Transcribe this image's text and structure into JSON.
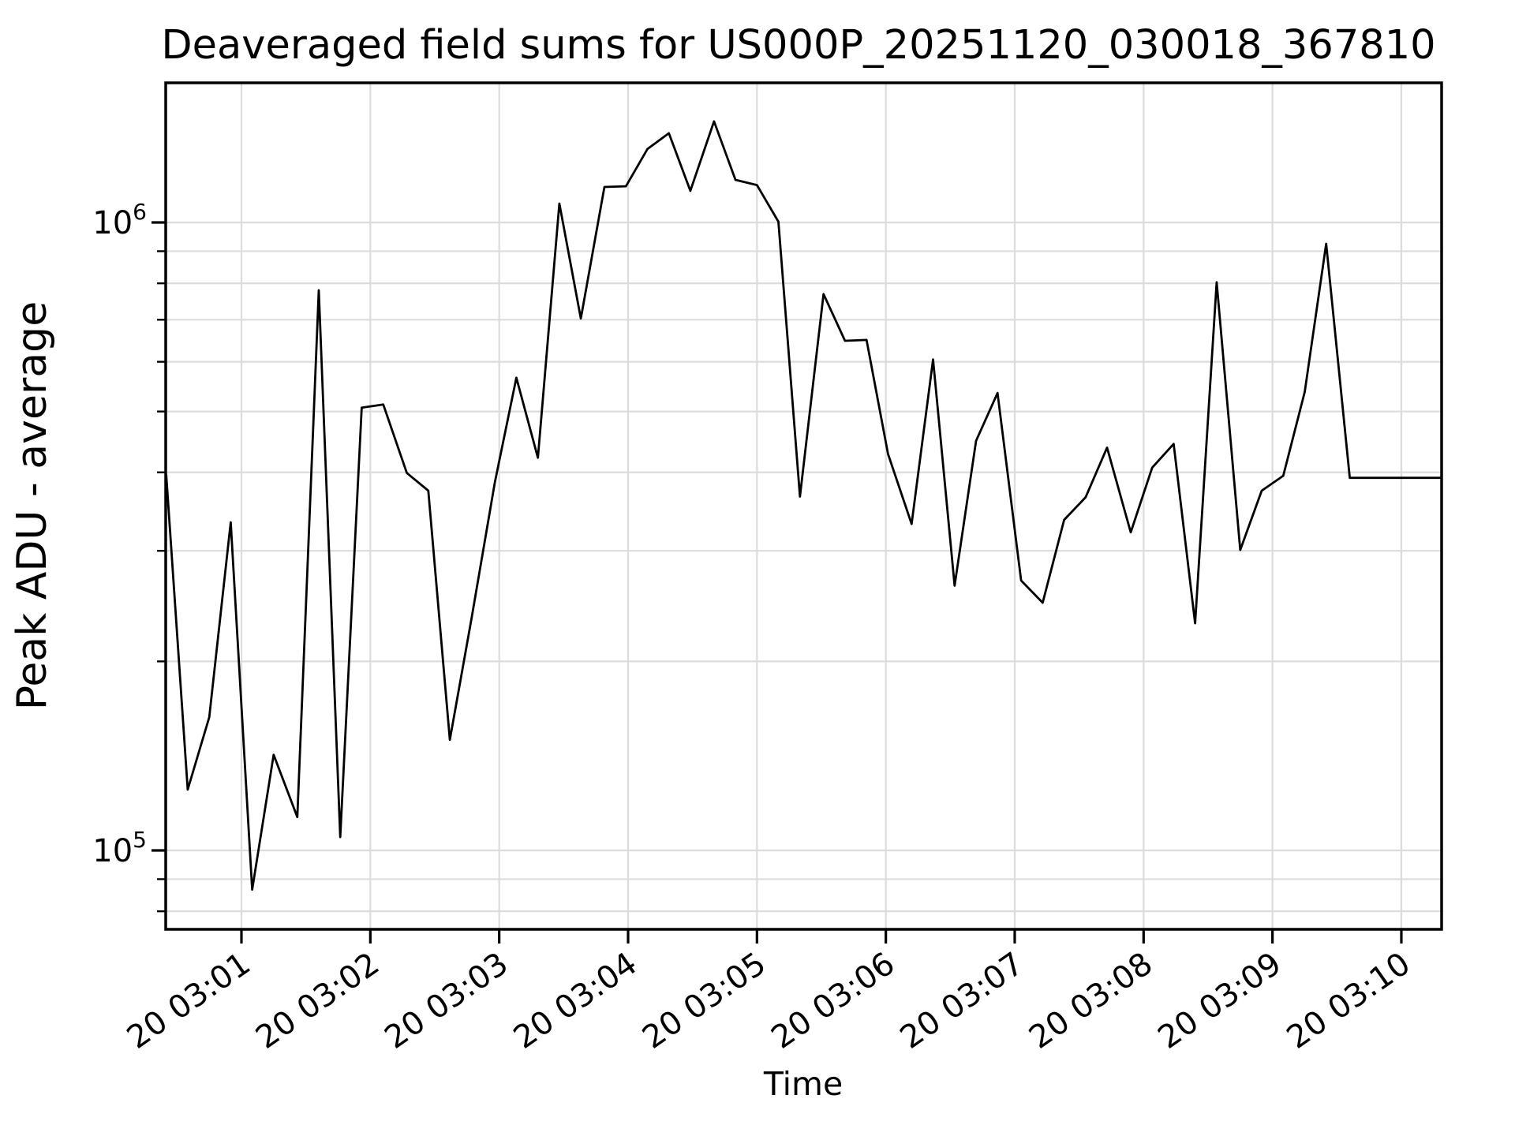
{
  "chart_data": {
    "type": "line",
    "title": "Deaveraged field sums for US000P_20251120_030018_367810",
    "xlabel": "Time",
    "ylabel": "Peak ADU - average",
    "legend": null,
    "grid": "both-x-major-y-major-and-minor",
    "scale": {
      "x": "time-linear",
      "y": "log10"
    },
    "xlim_time": [
      "03:00:25",
      "03:10:19"
    ],
    "ylim": [
      74900,
      1669000
    ],
    "x_ticks": [
      {
        "minute": 1,
        "label": "20 03:01"
      },
      {
        "minute": 2,
        "label": "20 03:02"
      },
      {
        "minute": 3,
        "label": "20 03:03"
      },
      {
        "minute": 4,
        "label": "20 03:04"
      },
      {
        "minute": 5,
        "label": "20 03:05"
      },
      {
        "minute": 6,
        "label": "20 03:06"
      },
      {
        "minute": 7,
        "label": "20 03:07"
      },
      {
        "minute": 8,
        "label": "20 03:08"
      },
      {
        "minute": 9,
        "label": "20 03:09"
      },
      {
        "minute": 10,
        "label": "20 03:10"
      }
    ],
    "y_major_ticks": [
      {
        "value": 100000,
        "base": "10",
        "exponent": "5"
      },
      {
        "value": 1000000,
        "base": "10",
        "exponent": "6"
      }
    ],
    "y_minor_tick_values": [
      80000,
      90000,
      200000,
      300000,
      400000,
      500000,
      600000,
      700000,
      800000,
      900000
    ],
    "colors": {
      "line": "#000000",
      "grid": "#dcdcdc",
      "spine": "#000000",
      "text": "#000000",
      "background": "#ffffff"
    },
    "series": [
      {
        "name": "deaveraged-field-sum",
        "points": [
          [
            "03:00:25",
            396000
          ],
          [
            "03:00:35",
            125000
          ],
          [
            "03:00:45",
            163000
          ],
          [
            "03:00:55",
            333000
          ],
          [
            "03:01:05",
            86600
          ],
          [
            "03:01:15",
            142000
          ],
          [
            "03:01:26",
            113000
          ],
          [
            "03:01:36",
            780000
          ],
          [
            "03:01:46",
            105000
          ],
          [
            "03:01:56",
            507000
          ],
          [
            "03:02:06",
            513000
          ],
          [
            "03:02:17",
            399000
          ],
          [
            "03:02:27",
            374000
          ],
          [
            "03:02:37",
            150000
          ],
          [
            "03:02:47",
            233000
          ],
          [
            "03:02:58",
            386000
          ],
          [
            "03:03:08",
            566000
          ],
          [
            "03:03:18",
            422000
          ],
          [
            "03:03:28",
            1072000
          ],
          [
            "03:03:38",
            703000
          ],
          [
            "03:03:49",
            1139000
          ],
          [
            "03:03:59",
            1142000
          ],
          [
            "03:04:09",
            1309000
          ],
          [
            "03:04:19",
            1387000
          ],
          [
            "03:04:29",
            1123000
          ],
          [
            "03:04:40",
            1449000
          ],
          [
            "03:04:50",
            1169000
          ],
          [
            "03:05:00",
            1147000
          ],
          [
            "03:05:10",
            1003000
          ],
          [
            "03:05:20",
            366000
          ],
          [
            "03:05:31",
            769000
          ],
          [
            "03:05:41",
            648000
          ],
          [
            "03:05:51",
            650000
          ],
          [
            "03:06:01",
            428000
          ],
          [
            "03:06:12",
            331000
          ],
          [
            "03:06:22",
            605000
          ],
          [
            "03:06:32",
            264000
          ],
          [
            "03:06:42",
            449000
          ],
          [
            "03:06:52",
            535000
          ],
          [
            "03:07:03",
            269000
          ],
          [
            "03:07:13",
            248000
          ],
          [
            "03:07:23",
            336000
          ],
          [
            "03:07:33",
            365000
          ],
          [
            "03:07:43",
            438000
          ],
          [
            "03:07:54",
            321000
          ],
          [
            "03:08:04",
            407000
          ],
          [
            "03:08:14",
            444000
          ],
          [
            "03:08:24",
            230000
          ],
          [
            "03:08:34",
            803000
          ],
          [
            "03:08:45",
            301000
          ],
          [
            "03:08:55",
            374000
          ],
          [
            "03:09:05",
            395000
          ],
          [
            "03:09:15",
            537000
          ],
          [
            "03:09:25",
            925000
          ],
          [
            "03:09:36",
            392000
          ],
          [
            "03:09:46",
            392000
          ],
          [
            "03:09:56",
            392000
          ],
          [
            "03:10:06",
            392000
          ],
          [
            "03:10:19",
            392000
          ]
        ]
      }
    ]
  }
}
